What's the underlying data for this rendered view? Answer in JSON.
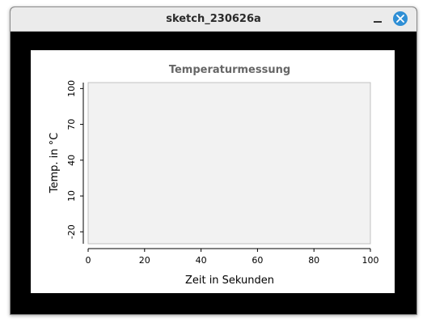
{
  "window": {
    "title": "sketch_230626a",
    "minimize_icon": "minimize-icon",
    "close_icon": "close-icon",
    "accent_color": "#2f8fd5"
  },
  "chart_data": {
    "type": "line",
    "title": "Temperaturmessung",
    "xlabel": "Zeit in Sekunden",
    "ylabel": "Temp. in °C",
    "xlim": [
      0,
      100
    ],
    "ylim": [
      -30,
      105
    ],
    "xticks": [
      "0",
      "20",
      "40",
      "60",
      "80",
      "100"
    ],
    "yticks": [
      "-20",
      "10",
      "40",
      "70",
      "100"
    ],
    "series": [],
    "grid": false,
    "plot_background": "#f2f2f2"
  }
}
